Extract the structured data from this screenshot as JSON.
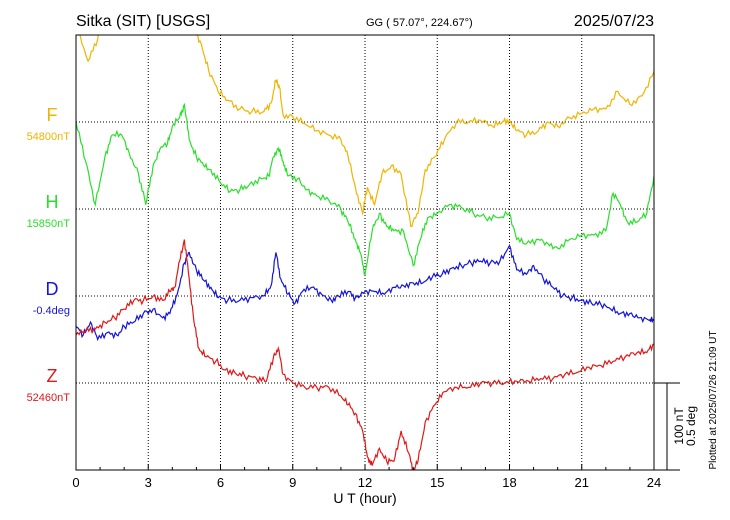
{
  "header": {
    "station": "Sitka (SIT)  [USGS]",
    "coords": "GG ( 57.07°, 224.67°)",
    "date": "2025/07/23"
  },
  "plotted_note": "Plotted at 2025/07/26 21:09 UT",
  "scale_note": {
    "nt": "100 nT",
    "deg": "0.5 deg"
  },
  "chart_data": {
    "type": "line",
    "title": "Sitka (SIT)  [USGS]",
    "xlabel": "U T (hour)",
    "xlim": [
      0,
      24
    ],
    "xticks": [
      "0",
      "3",
      "6",
      "9",
      "12",
      "15",
      "18",
      "21",
      "24"
    ],
    "grid": true,
    "series": [
      {
        "name": "F",
        "baseline_label": "54800nT",
        "color": "#f0b400",
        "row": 1,
        "values": [
          [
            0,
            1.1
          ],
          [
            0.5,
            0.7
          ],
          [
            0.9,
            0.95
          ],
          [
            1.3,
            1.8
          ],
          [
            1.7,
            2.0
          ],
          [
            2.0,
            1.9
          ],
          [
            2.3,
            2.0
          ],
          [
            2.6,
            1.7
          ],
          [
            3.0,
            1.95
          ],
          [
            3.3,
            1.9
          ],
          [
            3.6,
            1.7
          ],
          [
            3.9,
            1.6
          ],
          [
            4.1,
            1.5
          ],
          [
            4.3,
            1.25
          ],
          [
            4.6,
            1.15
          ],
          [
            4.9,
            1.05
          ],
          [
            5.2,
            0.9
          ],
          [
            5.5,
            0.6
          ],
          [
            5.9,
            0.35
          ],
          [
            6.3,
            0.25
          ],
          [
            6.8,
            0.15
          ],
          [
            7.3,
            0.12
          ],
          [
            7.8,
            0.12
          ],
          [
            8.1,
            0.22
          ],
          [
            8.3,
            0.48
          ],
          [
            8.45,
            0.4
          ],
          [
            8.6,
            0.08
          ],
          [
            9.0,
            0.06
          ],
          [
            9.5,
            -0.02
          ],
          [
            10.0,
            -0.1
          ],
          [
            10.5,
            -0.15
          ],
          [
            11.0,
            -0.2
          ],
          [
            11.3,
            -0.4
          ],
          [
            11.6,
            -0.75
          ],
          [
            11.9,
            -1.05
          ],
          [
            12.1,
            -0.75
          ],
          [
            12.4,
            -0.95
          ],
          [
            12.7,
            -0.6
          ],
          [
            13.1,
            -0.5
          ],
          [
            13.5,
            -0.6
          ],
          [
            13.9,
            -1.2
          ],
          [
            14.2,
            -1.05
          ],
          [
            14.5,
            -0.55
          ],
          [
            14.9,
            -0.4
          ],
          [
            15.3,
            -0.2
          ],
          [
            15.8,
            0.0
          ],
          [
            16.3,
            0.0
          ],
          [
            16.8,
            0.02
          ],
          [
            17.3,
            -0.05
          ],
          [
            17.7,
            0.0
          ],
          [
            18.0,
            0.02
          ],
          [
            18.3,
            -0.1
          ],
          [
            18.7,
            -0.15
          ],
          [
            19.2,
            -0.1
          ],
          [
            19.6,
            0.0
          ],
          [
            20.0,
            -0.05
          ],
          [
            20.5,
            0.05
          ],
          [
            21.0,
            0.1
          ],
          [
            21.5,
            0.15
          ],
          [
            22.0,
            0.15
          ],
          [
            22.5,
            0.35
          ],
          [
            23.0,
            0.2
          ],
          [
            23.5,
            0.3
          ],
          [
            24.0,
            0.58
          ]
        ]
      },
      {
        "name": "H",
        "baseline_label": "15850nT",
        "color": "#2adf2a",
        "row": 2,
        "values": [
          [
            0,
            1.0
          ],
          [
            0.4,
            0.55
          ],
          [
            0.8,
            0.05
          ],
          [
            1.2,
            0.6
          ],
          [
            1.5,
            0.85
          ],
          [
            1.9,
            0.85
          ],
          [
            2.2,
            0.65
          ],
          [
            2.6,
            0.4
          ],
          [
            2.9,
            0.05
          ],
          [
            3.2,
            0.5
          ],
          [
            3.5,
            0.7
          ],
          [
            3.8,
            0.75
          ],
          [
            4.0,
            0.95
          ],
          [
            4.3,
            1.05
          ],
          [
            4.5,
            1.2
          ],
          [
            4.7,
            0.8
          ],
          [
            5.0,
            0.6
          ],
          [
            5.3,
            0.5
          ],
          [
            5.6,
            0.45
          ],
          [
            6.0,
            0.3
          ],
          [
            6.4,
            0.2
          ],
          [
            6.8,
            0.22
          ],
          [
            7.2,
            0.28
          ],
          [
            7.7,
            0.35
          ],
          [
            8.0,
            0.38
          ],
          [
            8.2,
            0.6
          ],
          [
            8.4,
            0.7
          ],
          [
            8.6,
            0.55
          ],
          [
            8.8,
            0.38
          ],
          [
            9.2,
            0.35
          ],
          [
            9.6,
            0.22
          ],
          [
            10.0,
            0.15
          ],
          [
            10.5,
            0.1
          ],
          [
            11.0,
            0.0
          ],
          [
            11.3,
            -0.15
          ],
          [
            11.6,
            -0.35
          ],
          [
            11.8,
            -0.5
          ],
          [
            12.0,
            -0.75
          ],
          [
            12.3,
            -0.25
          ],
          [
            12.6,
            -0.05
          ],
          [
            12.9,
            -0.2
          ],
          [
            13.2,
            -0.25
          ],
          [
            13.6,
            -0.25
          ],
          [
            14.0,
            -0.65
          ],
          [
            14.3,
            -0.35
          ],
          [
            14.6,
            -0.1
          ],
          [
            15.0,
            -0.05
          ],
          [
            15.5,
            0.05
          ],
          [
            16.0,
            0.02
          ],
          [
            16.5,
            -0.05
          ],
          [
            17.0,
            -0.1
          ],
          [
            17.5,
            -0.1
          ],
          [
            18.0,
            -0.05
          ],
          [
            18.3,
            -0.35
          ],
          [
            18.7,
            -0.4
          ],
          [
            19.2,
            -0.35
          ],
          [
            19.6,
            -0.4
          ],
          [
            20.0,
            -0.45
          ],
          [
            20.5,
            -0.35
          ],
          [
            21.0,
            -0.3
          ],
          [
            21.5,
            -0.3
          ],
          [
            22.0,
            -0.25
          ],
          [
            22.3,
            0.18
          ],
          [
            22.6,
            0.05
          ],
          [
            22.9,
            -0.15
          ],
          [
            23.3,
            -0.15
          ],
          [
            23.7,
            -0.05
          ],
          [
            24.0,
            0.38
          ]
        ]
      },
      {
        "name": "D",
        "baseline_label": "-0.4deg",
        "color": "#1414d8",
        "row": 3,
        "values": [
          [
            0,
            -0.35
          ],
          [
            0.3,
            -0.45
          ],
          [
            0.6,
            -0.3
          ],
          [
            0.9,
            -0.5
          ],
          [
            1.3,
            -0.42
          ],
          [
            1.7,
            -0.45
          ],
          [
            2.0,
            -0.35
          ],
          [
            2.4,
            -0.3
          ],
          [
            2.8,
            -0.2
          ],
          [
            3.2,
            -0.15
          ],
          [
            3.6,
            -0.25
          ],
          [
            3.9,
            -0.2
          ],
          [
            4.2,
            0.02
          ],
          [
            4.5,
            0.38
          ],
          [
            4.7,
            0.5
          ],
          [
            5.0,
            0.3
          ],
          [
            5.3,
            0.18
          ],
          [
            5.6,
            0.1
          ],
          [
            5.9,
            -0.02
          ],
          [
            6.3,
            -0.05
          ],
          [
            6.8,
            -0.05
          ],
          [
            7.3,
            -0.02
          ],
          [
            7.8,
            0.0
          ],
          [
            8.1,
            0.12
          ],
          [
            8.3,
            0.5
          ],
          [
            8.5,
            0.2
          ],
          [
            8.8,
            0.02
          ],
          [
            9.1,
            -0.08
          ],
          [
            9.4,
            0.05
          ],
          [
            9.8,
            0.1
          ],
          [
            10.2,
            0.02
          ],
          [
            10.6,
            -0.05
          ],
          [
            10.9,
            0.0
          ],
          [
            11.3,
            0.05
          ],
          [
            11.6,
            -0.02
          ],
          [
            12.0,
            0.05
          ],
          [
            12.4,
            0.05
          ],
          [
            12.8,
            0.02
          ],
          [
            13.2,
            0.1
          ],
          [
            13.6,
            0.12
          ],
          [
            14.0,
            0.15
          ],
          [
            14.4,
            0.15
          ],
          [
            14.8,
            0.22
          ],
          [
            15.2,
            0.25
          ],
          [
            15.6,
            0.32
          ],
          [
            16.0,
            0.35
          ],
          [
            16.4,
            0.38
          ],
          [
            16.8,
            0.4
          ],
          [
            17.2,
            0.38
          ],
          [
            17.6,
            0.4
          ],
          [
            18.0,
            0.58
          ],
          [
            18.3,
            0.3
          ],
          [
            18.7,
            0.25
          ],
          [
            19.0,
            0.35
          ],
          [
            19.4,
            0.2
          ],
          [
            19.8,
            0.1
          ],
          [
            20.2,
            0.0
          ],
          [
            20.6,
            -0.02
          ],
          [
            21.0,
            -0.05
          ],
          [
            21.4,
            -0.08
          ],
          [
            21.8,
            -0.1
          ],
          [
            22.2,
            -0.15
          ],
          [
            22.6,
            -0.2
          ],
          [
            23.0,
            -0.2
          ],
          [
            23.4,
            -0.25
          ],
          [
            23.8,
            -0.28
          ],
          [
            24.0,
            -0.28
          ]
        ]
      },
      {
        "name": "Z",
        "baseline_label": "52460nT",
        "color": "#e01818",
        "row": 4,
        "values": [
          [
            0,
            0.55
          ],
          [
            0.4,
            0.6
          ],
          [
            0.8,
            0.62
          ],
          [
            1.2,
            0.7
          ],
          [
            1.6,
            0.75
          ],
          [
            2.0,
            0.85
          ],
          [
            2.4,
            0.95
          ],
          [
            2.8,
            0.95
          ],
          [
            3.2,
            1.0
          ],
          [
            3.6,
            0.95
          ],
          [
            3.9,
            1.05
          ],
          [
            4.1,
            1.1
          ],
          [
            4.3,
            1.4
          ],
          [
            4.5,
            1.65
          ],
          [
            4.7,
            1.2
          ],
          [
            4.9,
            0.7
          ],
          [
            5.1,
            0.4
          ],
          [
            5.4,
            0.3
          ],
          [
            5.8,
            0.25
          ],
          [
            6.2,
            0.15
          ],
          [
            6.6,
            0.12
          ],
          [
            7.0,
            0.08
          ],
          [
            7.5,
            0.05
          ],
          [
            7.9,
            0.02
          ],
          [
            8.2,
            0.3
          ],
          [
            8.4,
            0.4
          ],
          [
            8.6,
            0.1
          ],
          [
            9.0,
            0.0
          ],
          [
            9.5,
            -0.05
          ],
          [
            10.0,
            -0.05
          ],
          [
            10.5,
            -0.05
          ],
          [
            11.0,
            -0.15
          ],
          [
            11.3,
            -0.25
          ],
          [
            11.6,
            -0.35
          ],
          [
            11.9,
            -0.55
          ],
          [
            12.1,
            -0.85
          ],
          [
            12.3,
            -0.95
          ],
          [
            12.6,
            -0.75
          ],
          [
            12.9,
            -0.9
          ],
          [
            13.2,
            -0.9
          ],
          [
            13.5,
            -0.55
          ],
          [
            13.8,
            -0.8
          ],
          [
            14.0,
            -1.0
          ],
          [
            14.2,
            -0.9
          ],
          [
            14.5,
            -0.45
          ],
          [
            14.9,
            -0.25
          ],
          [
            15.3,
            -0.1
          ],
          [
            15.8,
            -0.05
          ],
          [
            16.3,
            -0.05
          ],
          [
            16.8,
            0.0
          ],
          [
            17.3,
            0.0
          ],
          [
            17.8,
            0.0
          ],
          [
            18.3,
            0.02
          ],
          [
            18.8,
            0.02
          ],
          [
            19.3,
            0.05
          ],
          [
            19.8,
            0.05
          ],
          [
            20.3,
            0.1
          ],
          [
            20.8,
            0.12
          ],
          [
            21.3,
            0.18
          ],
          [
            21.8,
            0.2
          ],
          [
            22.3,
            0.25
          ],
          [
            22.8,
            0.3
          ],
          [
            23.3,
            0.35
          ],
          [
            23.7,
            0.35
          ],
          [
            24.0,
            0.45
          ]
        ]
      }
    ]
  }
}
